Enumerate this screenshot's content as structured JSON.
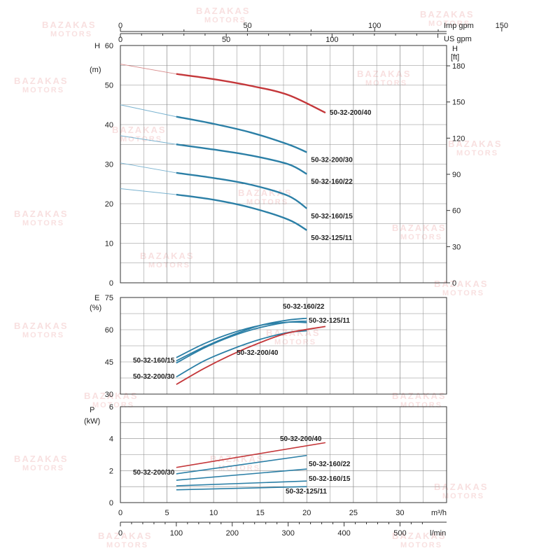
{
  "watermark": {
    "line1": "BAZAKAS",
    "line2": "MOTORS"
  },
  "colors": {
    "grid": "#8a8a8a",
    "blue": "#2b7fa6",
    "red": "#c4373a",
    "lightBlue": "#7ab3d0",
    "lightRed": "#d98b8b"
  },
  "chart_data": [
    {
      "type": "line",
      "ylabel": "H",
      "yunit": "(m)",
      "y2label": "H",
      "y2unit": "[ft]",
      "xlabel": "m³/h",
      "xlim": [
        0,
        35
      ],
      "ylim": [
        0,
        60
      ],
      "yticks": [
        0,
        10,
        20,
        30,
        40,
        50,
        60
      ],
      "y2ticks": [
        0,
        30,
        60,
        90,
        120,
        150,
        180
      ],
      "top_axes": [
        {
          "label": "Imp gpm",
          "ticks": [
            0,
            50,
            100,
            150
          ]
        },
        {
          "label": "US gpm",
          "ticks": [
            0,
            50,
            100
          ]
        }
      ],
      "grid": true,
      "series": [
        {
          "name": "50-32-200/40",
          "color": "red",
          "thin": [
            [
              0,
              55.3
            ],
            [
              6,
              52.8
            ]
          ],
          "points": [
            [
              6,
              52.8
            ],
            [
              10,
              51.5
            ],
            [
              14,
              49.8
            ],
            [
              18,
              47.5
            ],
            [
              22,
              43
            ]
          ]
        },
        {
          "name": "50-32-200/30",
          "color": "blue",
          "thin": [
            [
              0,
              45
            ],
            [
              6,
              42
            ]
          ],
          "points": [
            [
              6,
              42
            ],
            [
              10,
              40.2
            ],
            [
              14,
              38
            ],
            [
              18,
              35
            ],
            [
              20,
              33
            ]
          ]
        },
        {
          "name": "50-32-160/22",
          "color": "blue",
          "thin": [
            [
              0,
              37.2
            ],
            [
              6,
              35
            ]
          ],
          "points": [
            [
              6,
              35
            ],
            [
              10,
              33.7
            ],
            [
              14,
              32.2
            ],
            [
              18,
              30
            ],
            [
              20,
              27.5
            ]
          ]
        },
        {
          "name": "50-32-160/15",
          "color": "blue",
          "thin": [
            [
              0,
              30.3
            ],
            [
              6,
              27.8
            ]
          ],
          "points": [
            [
              6,
              27.8
            ],
            [
              10,
              26.5
            ],
            [
              14,
              24.8
            ],
            [
              18,
              22
            ],
            [
              20,
              18.8
            ]
          ]
        },
        {
          "name": "50-32-125/11",
          "color": "blue",
          "thin": [
            [
              0,
              23.8
            ],
            [
              6,
              22.3
            ]
          ],
          "points": [
            [
              6,
              22.3
            ],
            [
              10,
              21
            ],
            [
              14,
              19
            ],
            [
              18,
              16
            ],
            [
              20,
              13.3
            ]
          ]
        }
      ]
    },
    {
      "type": "line",
      "ylabel": "E",
      "yunit": "(%)",
      "xlim": [
        0,
        35
      ],
      "ylim": [
        30,
        75
      ],
      "yticks": [
        30,
        45,
        60,
        75
      ],
      "grid": true,
      "series": [
        {
          "name": "50-32-160/22",
          "color": "blue",
          "points": [
            [
              6,
              45.5
            ],
            [
              9,
              52
            ],
            [
              12,
              57.5
            ],
            [
              15,
              62
            ],
            [
              18,
              64.5
            ],
            [
              20,
              65.3
            ]
          ]
        },
        {
          "name": "50-32-125/11",
          "color": "blue",
          "points": [
            [
              6,
              44.5
            ],
            [
              9,
              51.5
            ],
            [
              12,
              57
            ],
            [
              15,
              61
            ],
            [
              18,
              63.5
            ],
            [
              20,
              64
            ]
          ]
        },
        {
          "name": "50-32-160/15",
          "color": "blue",
          "points": [
            [
              6,
              47
            ],
            [
              9,
              53.5
            ],
            [
              12,
              58.5
            ],
            [
              15,
              62
            ],
            [
              18,
              63.5
            ],
            [
              20,
              63.3
            ]
          ]
        },
        {
          "name": "50-32-200/30",
          "color": "blue",
          "points": [
            [
              6,
              38
            ],
            [
              9,
              45.5
            ],
            [
              12,
              51
            ],
            [
              15,
              55.5
            ],
            [
              18,
              58.7
            ],
            [
              20,
              59.5
            ]
          ]
        },
        {
          "name": "50-32-200/40",
          "color": "red",
          "points": [
            [
              6,
              34.5
            ],
            [
              9,
              42
            ],
            [
              12,
              48.5
            ],
            [
              15,
              54
            ],
            [
              18,
              58.5
            ],
            [
              22,
              61.5
            ]
          ]
        }
      ],
      "labels": [
        "50-32-160/22",
        "50-32-125/11",
        "50-32-160/15",
        "50-32-200/40",
        "50-32-200/30"
      ]
    },
    {
      "type": "line",
      "ylabel": "P",
      "yunit": "(kW)",
      "xlabel": "m³/h",
      "x2label": "l/min",
      "xlim": [
        0,
        35
      ],
      "ylim": [
        0,
        6
      ],
      "yticks": [
        0,
        2,
        4,
        6
      ],
      "xticks": [
        0,
        5,
        10,
        15,
        20,
        25,
        30
      ],
      "x2ticks": [
        0,
        100,
        200,
        300,
        400,
        500
      ],
      "grid": true,
      "series": [
        {
          "name": "50-32-200/40",
          "color": "red",
          "points": [
            [
              6,
              2.2
            ],
            [
              22,
              3.75
            ]
          ]
        },
        {
          "name": "50-32-200/30",
          "color": "blue",
          "points": [
            [
              6,
              1.8
            ],
            [
              20,
              2.95
            ]
          ]
        },
        {
          "name": "50-32-160/22",
          "color": "blue",
          "points": [
            [
              6,
              1.4
            ],
            [
              20,
              2.1
            ]
          ]
        },
        {
          "name": "50-32-160/15",
          "color": "blue",
          "points": [
            [
              6,
              1.05
            ],
            [
              20,
              1.35
            ]
          ]
        },
        {
          "name": "50-32-125/11",
          "color": "blue",
          "points": [
            [
              6,
              0.8
            ],
            [
              20,
              1.0
            ]
          ]
        }
      ]
    }
  ]
}
